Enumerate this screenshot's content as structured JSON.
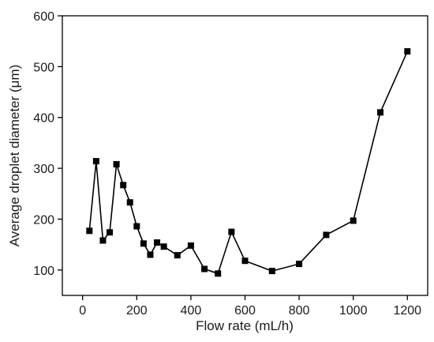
{
  "chart_data": {
    "type": "line",
    "title": "",
    "xlabel": "Flow rate (mL/h)",
    "ylabel": "Average droplet diameter (μm)",
    "xlim": [
      -75,
      1275
    ],
    "ylim": [
      50,
      600
    ],
    "xticks": [
      0,
      200,
      400,
      600,
      800,
      1000,
      1200
    ],
    "yticks": [
      100,
      200,
      300,
      400,
      500,
      600
    ],
    "grid": false,
    "marker": "square",
    "color": "#000000",
    "series": [
      {
        "x": [
          25,
          50,
          75,
          100,
          125,
          150,
          175,
          200,
          225,
          250,
          275,
          300,
          350,
          400,
          450,
          500,
          550,
          600,
          700,
          800,
          900,
          1000,
          1100,
          1200
        ],
        "y": [
          177,
          314,
          158,
          174,
          308,
          267,
          233,
          186,
          152,
          130,
          154,
          146,
          129,
          148,
          102,
          93,
          175,
          118,
          98,
          112,
          169,
          197,
          410,
          530
        ]
      }
    ]
  }
}
